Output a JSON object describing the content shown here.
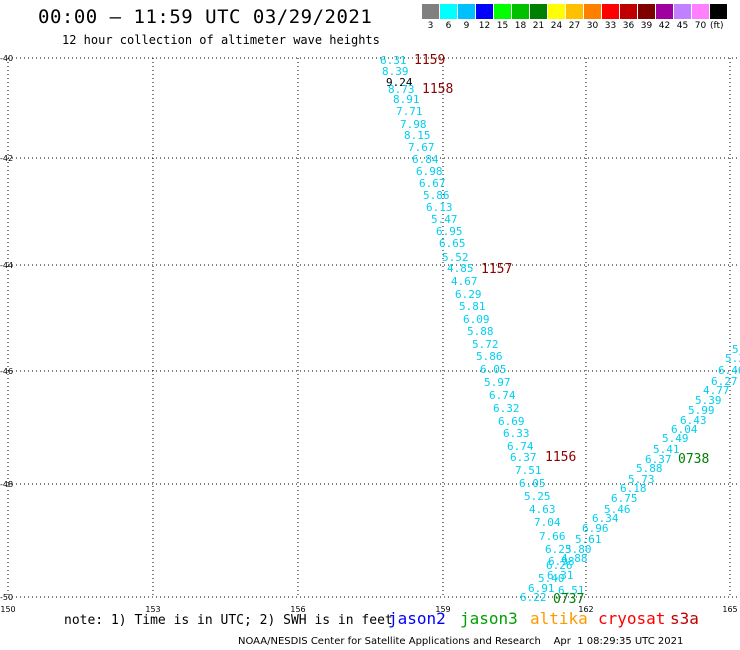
{
  "header": {
    "title": "00:00 – 11:59 UTC 03/29/2021",
    "subtitle": "12 hour collection of altimeter wave heights"
  },
  "legend": {
    "unit": "(ft)",
    "items": [
      {
        "label": "3",
        "color": "#808080"
      },
      {
        "label": "6",
        "color": "#00ffff"
      },
      {
        "label": "9",
        "color": "#00c0ff"
      },
      {
        "label": "12",
        "color": "#0000ff"
      },
      {
        "label": "15",
        "color": "#00ff00"
      },
      {
        "label": "18",
        "color": "#00c000"
      },
      {
        "label": "21",
        "color": "#008000"
      },
      {
        "label": "24",
        "color": "#ffff00"
      },
      {
        "label": "27",
        "color": "#ffc000"
      },
      {
        "label": "30",
        "color": "#ff8000"
      },
      {
        "label": "33",
        "color": "#ff0000"
      },
      {
        "label": "36",
        "color": "#c00000"
      },
      {
        "label": "39",
        "color": "#800000"
      },
      {
        "label": "42",
        "color": "#a000a0"
      },
      {
        "label": "45",
        "color": "#c080ff"
      },
      {
        "label": "70",
        "color": "#ff80ff"
      },
      {
        "label": "",
        "color": "#000000"
      }
    ]
  },
  "map": {
    "y_labels": [
      "-40",
      "-42",
      "-44",
      "-46",
      "-48",
      "-50"
    ],
    "x_labels": [
      "150",
      "153",
      "156",
      "159",
      "162",
      "165"
    ],
    "observations": [
      {
        "time": "1159",
        "value_labels": [
          "6.31",
          "8.39",
          "9.24",
          "8.73",
          "8.91",
          "7.71",
          "7.98",
          "8.15",
          "7.67"
        ]
      },
      {
        "time": "1158",
        "value_labels": [
          "6.84",
          "6.98",
          "6.67",
          "5.86",
          "6.13",
          "5.47",
          "6.95",
          "6.65",
          "5.52"
        ]
      },
      {
        "time": "1157",
        "value_labels": [
          "4.85",
          "4.67",
          "6.29",
          "5.81",
          "6.09",
          "5.88",
          "5.72",
          "5.86",
          "6.05",
          "5.97",
          "6.74",
          "6.32",
          "6.69",
          "6.33",
          "6.74",
          "6.37"
        ]
      },
      {
        "time": "1156",
        "value_labels": [
          "7.51",
          "6.05",
          "5.25",
          "4.63",
          "7.04",
          "7.66",
          "6.23",
          "6.98",
          "6.26",
          "6.31",
          "5.40",
          "6.91",
          "6.22"
        ]
      },
      {
        "time": "0737",
        "value_labels": [
          "6.51",
          "4.88",
          "5.80",
          "5.61",
          "6.96",
          "6.34",
          "5.46",
          "6.75",
          "6.18"
        ]
      },
      {
        "time": "0738",
        "value_labels": [
          "5.88",
          "5.73",
          "6.37",
          "5.41",
          "5.49",
          "6.04",
          "6.43",
          "5.99",
          "5.39",
          "4.77",
          "6.27",
          "6.46",
          "5.3",
          "5"
        ]
      }
    ]
  },
  "footer": {
    "note": "note: 1) Time is in UTC; 2) SWH is in feet",
    "satellites": [
      {
        "name": "jason2",
        "color": "#0000ff"
      },
      {
        "name": "jason3",
        "color": "#00a000"
      },
      {
        "name": "altika",
        "color": "#ff9900"
      },
      {
        "name": "cryosat",
        "color": "#ff0000"
      },
      {
        "name": "s3a",
        "color": "#c00000"
      }
    ],
    "credit": "NOAA/NESDIS Center for Satellite Applications and Research    Apr  1 08:29:35 UTC 2021"
  }
}
